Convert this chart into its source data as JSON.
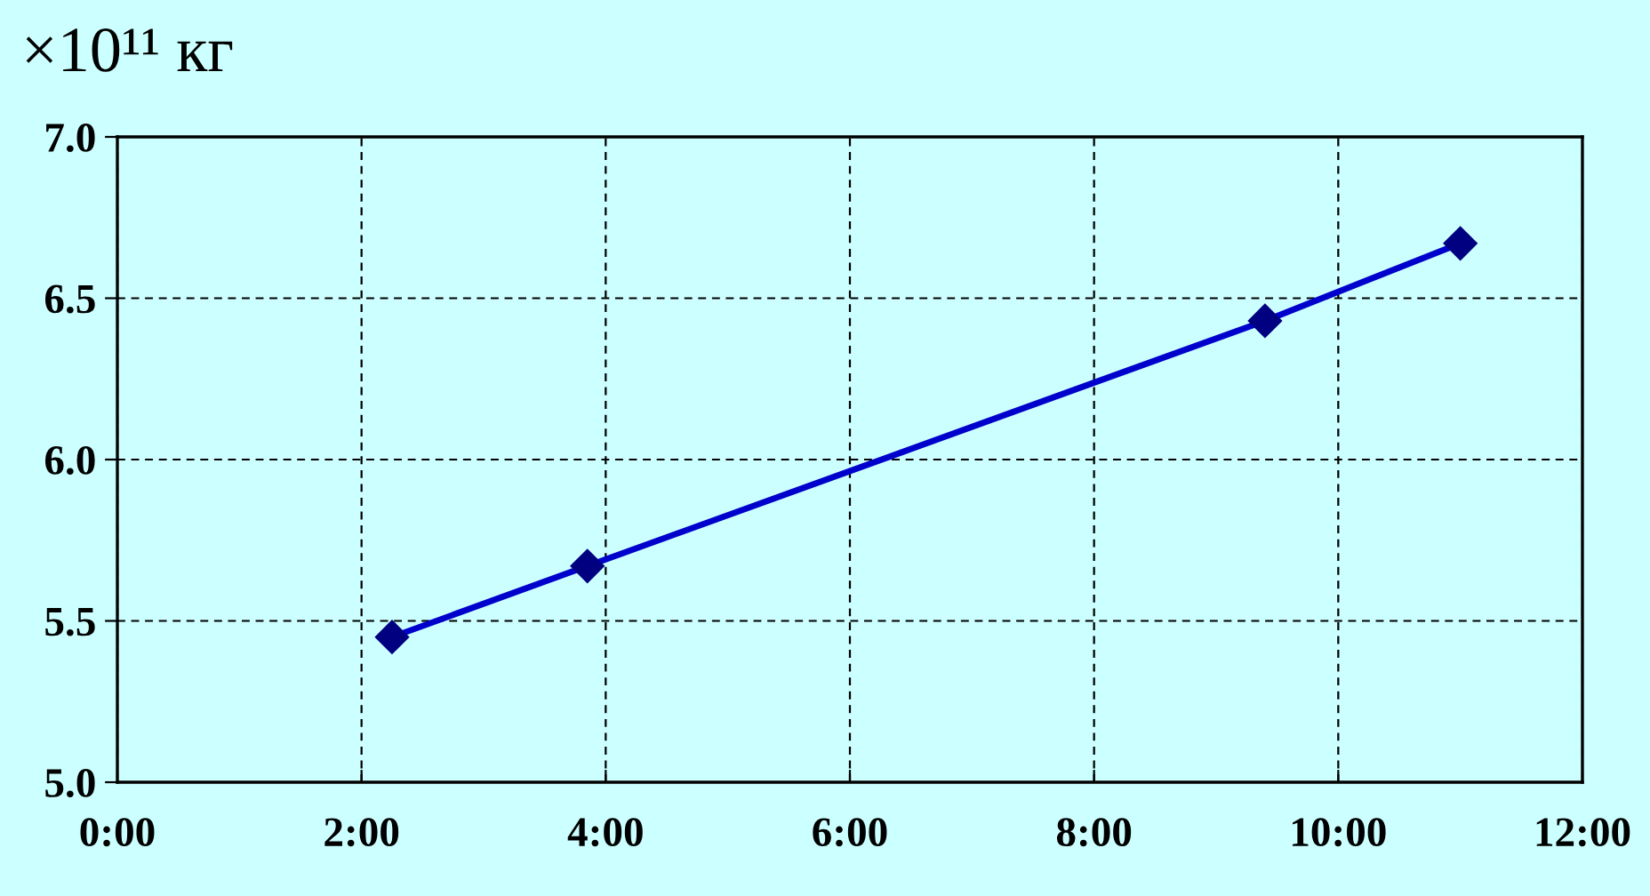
{
  "chart_data": {
    "type": "line",
    "ylabel": "×10¹¹ кг",
    "x": [
      2.25,
      3.85,
      9.4,
      11.0
    ],
    "series": [
      {
        "color": "#0000cc",
        "values": [
          5.45,
          5.67,
          6.43,
          6.67
        ]
      }
    ],
    "xlim": [
      0,
      12
    ],
    "xticks": [
      {
        "value": 0,
        "label": "0:00"
      },
      {
        "value": 2,
        "label": "2:00"
      },
      {
        "value": 4,
        "label": "4:00"
      },
      {
        "value": 6,
        "label": "6:00"
      },
      {
        "value": 8,
        "label": "8:00"
      },
      {
        "value": 10,
        "label": "10:00"
      },
      {
        "value": 12,
        "label": "12:00"
      }
    ],
    "ylim": [
      5.0,
      7.0
    ],
    "yticks": [
      {
        "value": 5.0,
        "label": "5.0"
      },
      {
        "value": 5.5,
        "label": "5.5"
      },
      {
        "value": 6.0,
        "label": "6.0"
      },
      {
        "value": 6.5,
        "label": "6.5"
      },
      {
        "value": 7.0,
        "label": "7.0"
      }
    ],
    "grid": true,
    "marker": "diamond",
    "line_style": "solid",
    "legend": false
  }
}
